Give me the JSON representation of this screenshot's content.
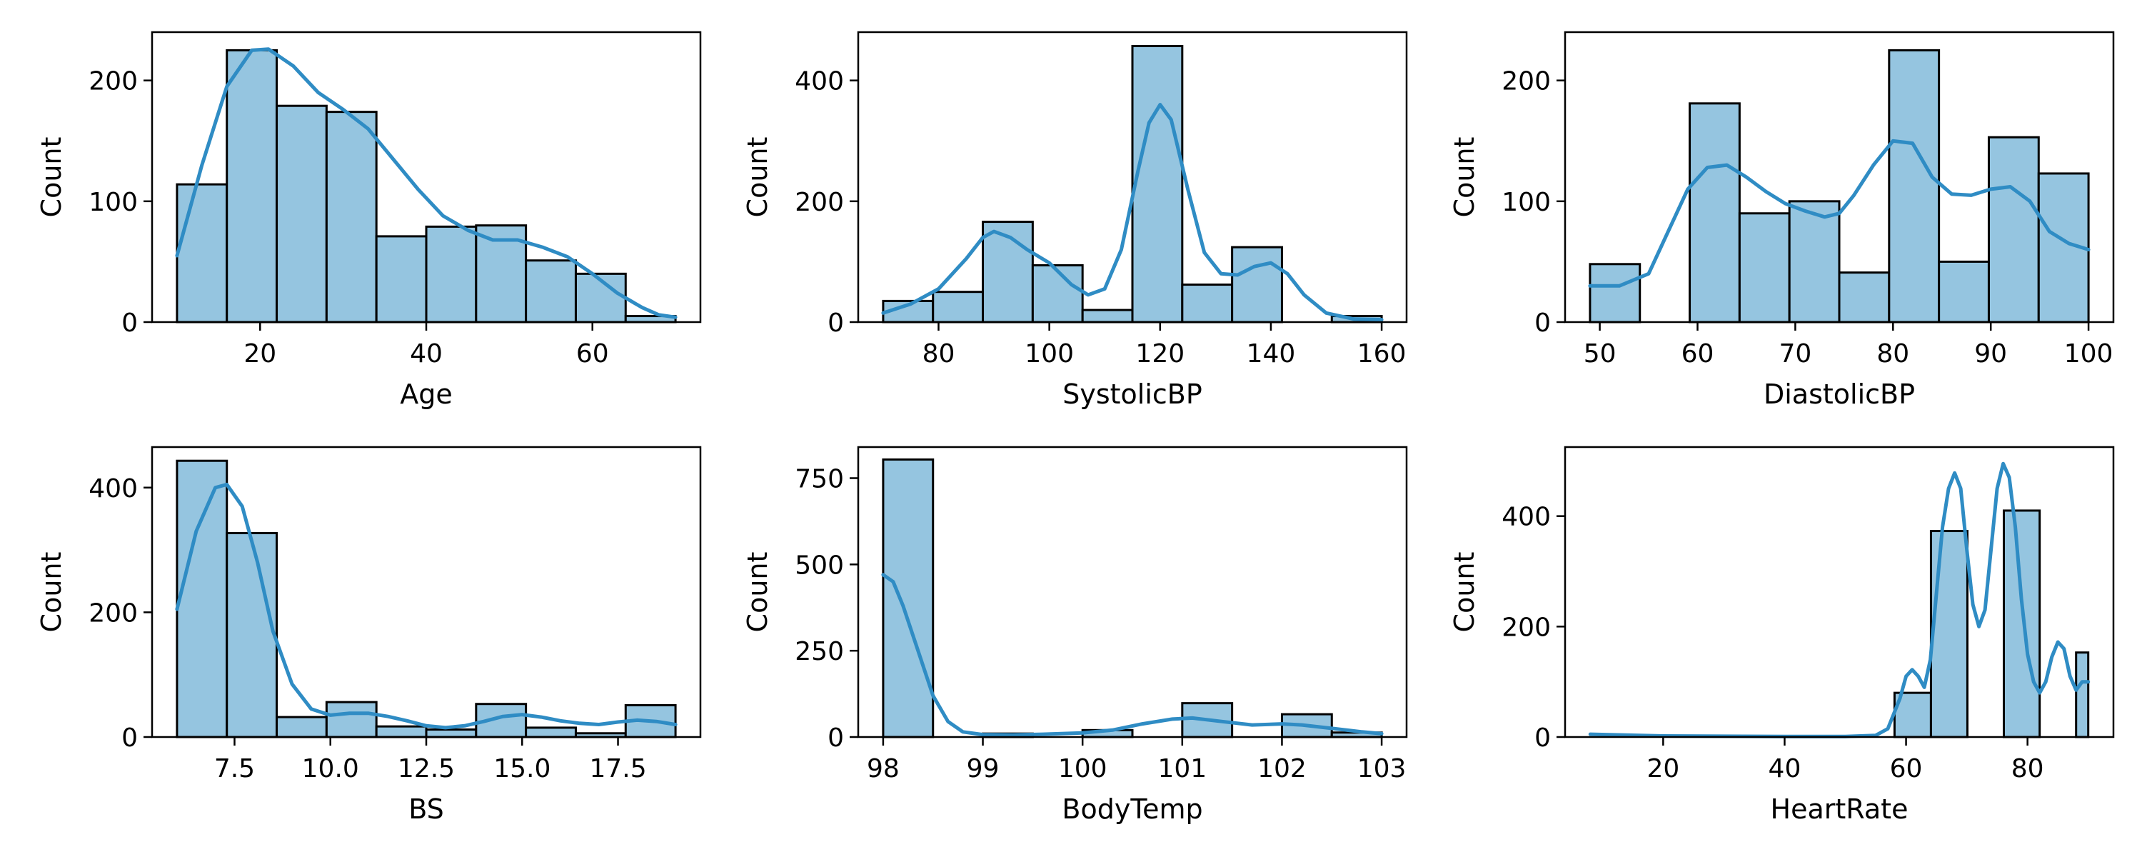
{
  "colors": {
    "bar_fill": "#95c5e0",
    "bar_edge": "#000000",
    "kde_line": "#2f8cc4"
  },
  "chart_data": [
    {
      "type": "bar",
      "xlabel": "Age",
      "ylabel": "Count",
      "xlim": [
        7,
        73
      ],
      "ylim": [
        0,
        240
      ],
      "xticks": [
        20,
        40,
        60
      ],
      "yticks": [
        0,
        100,
        200
      ],
      "bins": [
        {
          "x0": 10,
          "x1": 16,
          "count": 114
        },
        {
          "x0": 16,
          "x1": 22,
          "count": 225
        },
        {
          "x0": 22,
          "x1": 28,
          "count": 179
        },
        {
          "x0": 28,
          "x1": 34,
          "count": 174
        },
        {
          "x0": 34,
          "x1": 40,
          "count": 71
        },
        {
          "x0": 40,
          "x1": 46,
          "count": 79
        },
        {
          "x0": 46,
          "x1": 52,
          "count": 80
        },
        {
          "x0": 52,
          "x1": 58,
          "count": 51
        },
        {
          "x0": 58,
          "x1": 64,
          "count": 40
        },
        {
          "x0": 64,
          "x1": 70,
          "count": 5
        }
      ],
      "kde": [
        [
          10,
          55
        ],
        [
          13,
          130
        ],
        [
          16,
          195
        ],
        [
          19,
          225
        ],
        [
          21,
          226
        ],
        [
          24,
          212
        ],
        [
          27,
          190
        ],
        [
          30,
          176
        ],
        [
          33,
          160
        ],
        [
          36,
          135
        ],
        [
          39,
          110
        ],
        [
          42,
          88
        ],
        [
          45,
          76
        ],
        [
          48,
          68
        ],
        [
          51,
          68
        ],
        [
          54,
          62
        ],
        [
          57,
          54
        ],
        [
          60,
          40
        ],
        [
          63,
          24
        ],
        [
          66,
          12
        ],
        [
          68,
          6
        ],
        [
          70,
          4
        ]
      ]
    },
    {
      "type": "bar",
      "xlabel": "SystolicBP",
      "ylabel": "Count",
      "xlim": [
        65.5,
        164.5
      ],
      "ylim": [
        0,
        480
      ],
      "xticks": [
        80,
        100,
        120,
        140,
        160
      ],
      "yticks": [
        0,
        200,
        400
      ],
      "bins": [
        {
          "x0": 70,
          "x1": 79,
          "count": 35
        },
        {
          "x0": 79,
          "x1": 88,
          "count": 50
        },
        {
          "x0": 88,
          "x1": 97,
          "count": 166
        },
        {
          "x0": 97,
          "x1": 106,
          "count": 94
        },
        {
          "x0": 106,
          "x1": 115,
          "count": 20
        },
        {
          "x0": 115,
          "x1": 124,
          "count": 457
        },
        {
          "x0": 124,
          "x1": 133,
          "count": 62
        },
        {
          "x0": 133,
          "x1": 142,
          "count": 124
        },
        {
          "x0": 142,
          "x1": 151,
          "count": 0
        },
        {
          "x0": 151,
          "x1": 160,
          "count": 10
        }
      ],
      "kde": [
        [
          70,
          15
        ],
        [
          75,
          30
        ],
        [
          80,
          55
        ],
        [
          85,
          105
        ],
        [
          88,
          140
        ],
        [
          90,
          150
        ],
        [
          93,
          140
        ],
        [
          96,
          120
        ],
        [
          100,
          98
        ],
        [
          104,
          62
        ],
        [
          107,
          45
        ],
        [
          110,
          55
        ],
        [
          113,
          120
        ],
        [
          116,
          250
        ],
        [
          118,
          330
        ],
        [
          120,
          360
        ],
        [
          122,
          335
        ],
        [
          125,
          220
        ],
        [
          128,
          115
        ],
        [
          131,
          80
        ],
        [
          134,
          78
        ],
        [
          137,
          92
        ],
        [
          140,
          98
        ],
        [
          143,
          80
        ],
        [
          146,
          45
        ],
        [
          150,
          15
        ],
        [
          155,
          5
        ],
        [
          160,
          4
        ]
      ]
    },
    {
      "type": "bar",
      "xlabel": "DiastolicBP",
      "ylabel": "Count",
      "xlim": [
        46.45,
        102.55
      ],
      "ylim": [
        0,
        240
      ],
      "xticks": [
        50,
        60,
        70,
        80,
        90,
        100
      ],
      "yticks": [
        0,
        100,
        200
      ],
      "bins": [
        {
          "x0": 49,
          "x1": 54.1,
          "count": 48
        },
        {
          "x0": 54.1,
          "x1": 59.2,
          "count": 0
        },
        {
          "x0": 59.2,
          "x1": 64.3,
          "count": 181
        },
        {
          "x0": 64.3,
          "x1": 69.4,
          "count": 90
        },
        {
          "x0": 69.4,
          "x1": 74.5,
          "count": 100
        },
        {
          "x0": 74.5,
          "x1": 79.6,
          "count": 41
        },
        {
          "x0": 79.6,
          "x1": 84.7,
          "count": 225
        },
        {
          "x0": 84.7,
          "x1": 89.8,
          "count": 50
        },
        {
          "x0": 89.8,
          "x1": 94.9,
          "count": 153
        },
        {
          "x0": 94.9,
          "x1": 100,
          "count": 123
        }
      ],
      "kde": [
        [
          49,
          30
        ],
        [
          52,
          30
        ],
        [
          55,
          40
        ],
        [
          57,
          75
        ],
        [
          59,
          110
        ],
        [
          61,
          128
        ],
        [
          63,
          130
        ],
        [
          65,
          120
        ],
        [
          67,
          108
        ],
        [
          69,
          98
        ],
        [
          71,
          92
        ],
        [
          73,
          87
        ],
        [
          74.5,
          90
        ],
        [
          76,
          105
        ],
        [
          78,
          130
        ],
        [
          80,
          150
        ],
        [
          82,
          148
        ],
        [
          84,
          120
        ],
        [
          86,
          106
        ],
        [
          88,
          105
        ],
        [
          90,
          110
        ],
        [
          92,
          112
        ],
        [
          94,
          100
        ],
        [
          96,
          75
        ],
        [
          98,
          65
        ],
        [
          100,
          60
        ]
      ]
    },
    {
      "type": "bar",
      "xlabel": "BS",
      "ylabel": "Count",
      "xlim": [
        5.35,
        19.65
      ],
      "ylim": [
        0,
        465
      ],
      "xticks": [
        7.5,
        10.0,
        12.5,
        15.0,
        17.5
      ],
      "xtick_labels": [
        "7.5",
        "10.0",
        "12.5",
        "15.0",
        "17.5"
      ],
      "yticks": [
        0,
        200,
        400
      ],
      "bins": [
        {
          "x0": 6,
          "x1": 7.3,
          "count": 443
        },
        {
          "x0": 7.3,
          "x1": 8.6,
          "count": 327
        },
        {
          "x0": 8.6,
          "x1": 9.9,
          "count": 32
        },
        {
          "x0": 9.9,
          "x1": 11.2,
          "count": 56
        },
        {
          "x0": 11.2,
          "x1": 12.5,
          "count": 17
        },
        {
          "x0": 12.5,
          "x1": 13.8,
          "count": 12
        },
        {
          "x0": 13.8,
          "x1": 15.1,
          "count": 53
        },
        {
          "x0": 15.1,
          "x1": 16.4,
          "count": 15
        },
        {
          "x0": 16.4,
          "x1": 17.7,
          "count": 6
        },
        {
          "x0": 17.7,
          "x1": 19,
          "count": 51
        }
      ],
      "kde": [
        [
          6,
          205
        ],
        [
          6.5,
          330
        ],
        [
          7,
          400
        ],
        [
          7.3,
          405
        ],
        [
          7.7,
          370
        ],
        [
          8.1,
          280
        ],
        [
          8.5,
          170
        ],
        [
          9,
          85
        ],
        [
          9.5,
          45
        ],
        [
          10,
          35
        ],
        [
          10.5,
          38
        ],
        [
          11,
          38
        ],
        [
          11.5,
          33
        ],
        [
          12,
          26
        ],
        [
          12.5,
          18
        ],
        [
          13,
          15
        ],
        [
          13.5,
          18
        ],
        [
          14,
          25
        ],
        [
          14.5,
          33
        ],
        [
          15,
          36
        ],
        [
          15.5,
          32
        ],
        [
          16,
          26
        ],
        [
          16.5,
          22
        ],
        [
          17,
          20
        ],
        [
          17.5,
          24
        ],
        [
          18,
          27
        ],
        [
          18.5,
          25
        ],
        [
          19,
          20
        ]
      ]
    },
    {
      "type": "bar",
      "xlabel": "BodyTemp",
      "ylabel": "Count",
      "xlim": [
        97.75,
        103.25
      ],
      "ylim": [
        0,
        840
      ],
      "xticks": [
        98,
        99,
        100,
        101,
        102,
        103
      ],
      "yticks": [
        0,
        250,
        500,
        750
      ],
      "bins": [
        {
          "x0": 98,
          "x1": 98.5,
          "count": 804
        },
        {
          "x0": 98.5,
          "x1": 99,
          "count": 0
        },
        {
          "x0": 99,
          "x1": 99.5,
          "count": 10
        },
        {
          "x0": 99.5,
          "x1": 100,
          "count": 0
        },
        {
          "x0": 100,
          "x1": 100.5,
          "count": 20
        },
        {
          "x0": 100.5,
          "x1": 101,
          "count": 0
        },
        {
          "x0": 101,
          "x1": 101.5,
          "count": 98
        },
        {
          "x0": 101.5,
          "x1": 102,
          "count": 0
        },
        {
          "x0": 102,
          "x1": 102.5,
          "count": 66
        },
        {
          "x0": 102.5,
          "x1": 103,
          "count": 13
        }
      ],
      "kde": [
        [
          98,
          470
        ],
        [
          98.1,
          450
        ],
        [
          98.2,
          380
        ],
        [
          98.35,
          250
        ],
        [
          98.5,
          120
        ],
        [
          98.65,
          45
        ],
        [
          98.8,
          15
        ],
        [
          99,
          7
        ],
        [
          99.3,
          6
        ],
        [
          99.6,
          8
        ],
        [
          100,
          12
        ],
        [
          100.3,
          20
        ],
        [
          100.6,
          38
        ],
        [
          100.9,
          52
        ],
        [
          101.1,
          55
        ],
        [
          101.4,
          45
        ],
        [
          101.7,
          35
        ],
        [
          102,
          38
        ],
        [
          102.2,
          35
        ],
        [
          102.5,
          25
        ],
        [
          102.8,
          15
        ],
        [
          103,
          10
        ]
      ]
    },
    {
      "type": "bar",
      "xlabel": "HeartRate",
      "ylabel": "Count",
      "xlim": [
        3.85,
        94.15
      ],
      "ylim": [
        0,
        525
      ],
      "xticks": [
        20,
        40,
        60,
        80
      ],
      "yticks": [
        0,
        200,
        400
      ],
      "bins": [
        {
          "x0": 58.1,
          "x1": 64.1,
          "count": 80
        },
        {
          "x0": 64.1,
          "x1": 70.1,
          "count": 373
        },
        {
          "x0": 70.1,
          "x1": 76.1,
          "count": 0
        },
        {
          "x0": 76.1,
          "x1": 82,
          "count": 410
        },
        {
          "x0": 82,
          "x1": 88,
          "count": 0
        },
        {
          "x0": 88,
          "x1": 90,
          "count": 153
        }
      ],
      "kde": [
        [
          8,
          5
        ],
        [
          20,
          2
        ],
        [
          40,
          1
        ],
        [
          50,
          1
        ],
        [
          55,
          3
        ],
        [
          57,
          15
        ],
        [
          59,
          70
        ],
        [
          60,
          110
        ],
        [
          61,
          122
        ],
        [
          62,
          110
        ],
        [
          63,
          90
        ],
        [
          64,
          140
        ],
        [
          65,
          260
        ],
        [
          66,
          380
        ],
        [
          67,
          450
        ],
        [
          68,
          478
        ],
        [
          69,
          450
        ],
        [
          70,
          340
        ],
        [
          71,
          240
        ],
        [
          72,
          200
        ],
        [
          73,
          230
        ],
        [
          74,
          340
        ],
        [
          75,
          450
        ],
        [
          76,
          495
        ],
        [
          77,
          470
        ],
        [
          78,
          380
        ],
        [
          79,
          250
        ],
        [
          80,
          150
        ],
        [
          81,
          100
        ],
        [
          82,
          80
        ],
        [
          83,
          100
        ],
        [
          84,
          145
        ],
        [
          85,
          172
        ],
        [
          86,
          160
        ],
        [
          87,
          110
        ],
        [
          88,
          85
        ],
        [
          89,
          100
        ],
        [
          90,
          100
        ]
      ]
    }
  ]
}
